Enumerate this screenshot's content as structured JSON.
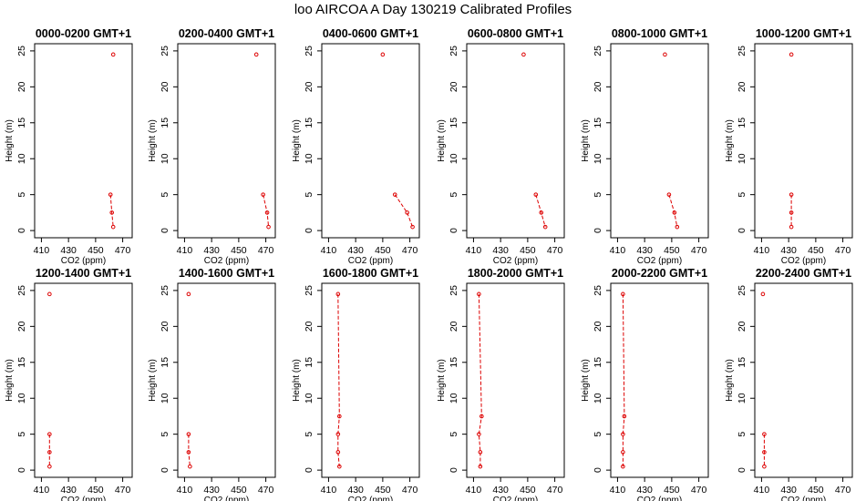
{
  "title": "loo AIRCOA A  Day 130219  Calibrated Profiles",
  "colors": {
    "series": "#dd0000",
    "axis": "#000000",
    "background": "#ffffff"
  },
  "chart_data": {
    "type": "scatter",
    "layout": "2x6 small multiples",
    "xlabel": "CO2 (ppm)",
    "ylabel": "Height (m)",
    "xlim": [
      405,
      477
    ],
    "ylim": [
      -1,
      26
    ],
    "xticks": [
      410,
      430,
      450,
      470
    ],
    "yticks": [
      0,
      5,
      10,
      15,
      20,
      25
    ],
    "panels": [
      {
        "title": "0000-0200 GMT+1",
        "points": [
          {
            "x": 463,
            "y": 24.5
          }
        ],
        "profile": [
          {
            "x": 461,
            "y": 5
          },
          {
            "x": 462,
            "y": 2.5
          },
          {
            "x": 463,
            "y": 0.5
          }
        ]
      },
      {
        "title": "0200-0400 GMT+1",
        "points": [
          {
            "x": 463,
            "y": 24.5
          }
        ],
        "profile": [
          {
            "x": 468,
            "y": 5
          },
          {
            "x": 471,
            "y": 2.5
          },
          {
            "x": 472,
            "y": 0.5
          }
        ]
      },
      {
        "title": "0400-0600 GMT+1",
        "points": [
          {
            "x": 450,
            "y": 24.5
          }
        ],
        "profile": [
          {
            "x": 459,
            "y": 5
          },
          {
            "x": 468,
            "y": 2.5
          },
          {
            "x": 472,
            "y": 0.5
          }
        ]
      },
      {
        "title": "0600-0800 GMT+1",
        "points": [
          {
            "x": 447,
            "y": 24.5
          }
        ],
        "profile": [
          {
            "x": 456,
            "y": 5
          },
          {
            "x": 460,
            "y": 2.5
          },
          {
            "x": 463,
            "y": 0.5
          }
        ]
      },
      {
        "title": "0800-1000 GMT+1",
        "points": [
          {
            "x": 445,
            "y": 24.5
          }
        ],
        "profile": [
          {
            "x": 448,
            "y": 5
          },
          {
            "x": 452,
            "y": 2.5
          },
          {
            "x": 454,
            "y": 0.5
          }
        ]
      },
      {
        "title": "1000-1200 GMT+1",
        "points": [
          {
            "x": 432,
            "y": 24.5
          }
        ],
        "profile": [
          {
            "x": 432,
            "y": 5
          },
          {
            "x": 432,
            "y": 2.5
          },
          {
            "x": 432,
            "y": 0.5
          }
        ]
      },
      {
        "title": "1200-1400 GMT+1",
        "points": [
          {
            "x": 416,
            "y": 24.5
          }
        ],
        "profile": [
          {
            "x": 416,
            "y": 5
          },
          {
            "x": 416,
            "y": 2.5
          },
          {
            "x": 416,
            "y": 0.5
          }
        ]
      },
      {
        "title": "1400-1600 GMT+1",
        "points": [
          {
            "x": 413,
            "y": 24.5
          }
        ],
        "profile": [
          {
            "x": 413,
            "y": 5
          },
          {
            "x": 413,
            "y": 2.5
          },
          {
            "x": 414,
            "y": 0.5
          }
        ]
      },
      {
        "title": "1600-1800 GMT+1",
        "points": [],
        "profile": [
          {
            "x": 417,
            "y": 24.5
          },
          {
            "x": 418,
            "y": 7.5
          },
          {
            "x": 417,
            "y": 5
          },
          {
            "x": 417,
            "y": 2.5
          },
          {
            "x": 418,
            "y": 0.5
          }
        ]
      },
      {
        "title": "1800-2000 GMT+1",
        "points": [],
        "profile": [
          {
            "x": 414,
            "y": 24.5
          },
          {
            "x": 416,
            "y": 7.5
          },
          {
            "x": 414,
            "y": 5
          },
          {
            "x": 415,
            "y": 2.5
          },
          {
            "x": 415,
            "y": 0.5
          }
        ]
      },
      {
        "title": "2000-2200 GMT+1",
        "points": [],
        "profile": [
          {
            "x": 414,
            "y": 24.5
          },
          {
            "x": 415,
            "y": 7.5
          },
          {
            "x": 414,
            "y": 5
          },
          {
            "x": 414,
            "y": 2.5
          },
          {
            "x": 414,
            "y": 0.5
          }
        ]
      },
      {
        "title": "2200-2400 GMT+1",
        "points": [
          {
            "x": 411,
            "y": 24.5
          }
        ],
        "profile": [
          {
            "x": 412,
            "y": 5
          },
          {
            "x": 412,
            "y": 2.5
          },
          {
            "x": 412,
            "y": 0.5
          }
        ]
      }
    ]
  }
}
